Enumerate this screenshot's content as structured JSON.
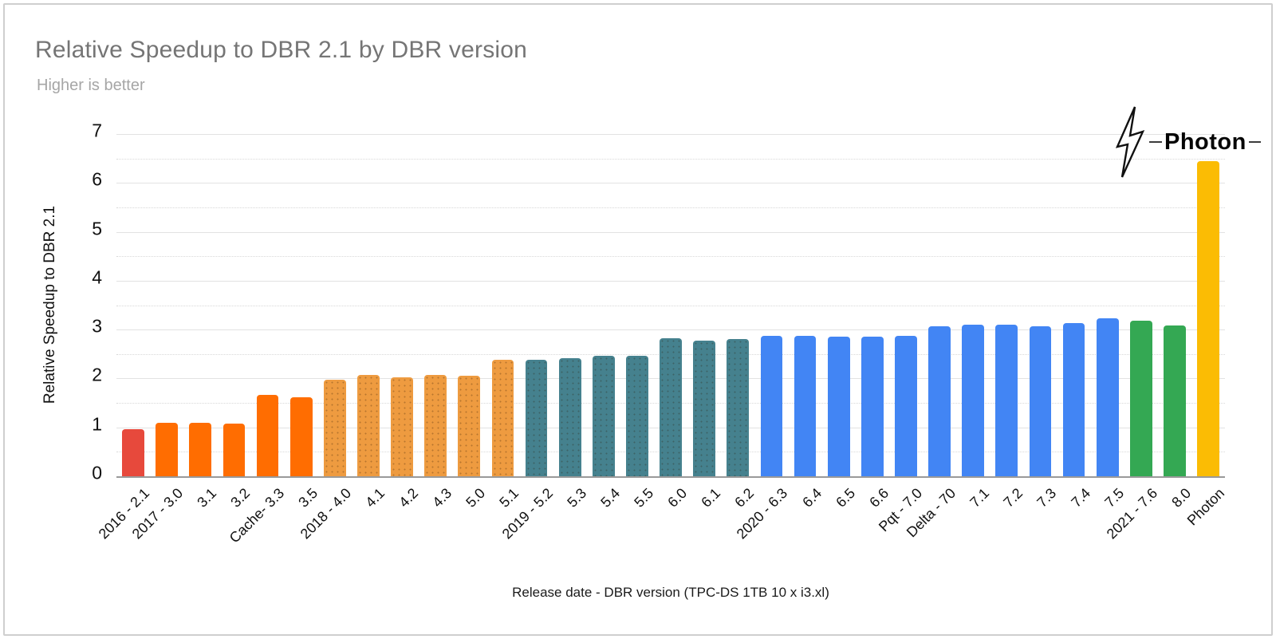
{
  "header": {
    "title": "Relative Speedup to DBR 2.1 by DBR version",
    "subtitle": "Higher is better"
  },
  "chart_data": {
    "type": "bar",
    "title": "Relative Speedup to DBR 2.1 by DBR version",
    "subtitle": "Higher is better",
    "xlabel": "Release date - DBR version (TPC-DS 1TB 10 x i3.xl)",
    "ylabel": "Relative Speedup to DBR 2.1",
    "ylim": [
      0,
      7
    ],
    "yticks": [
      0,
      1,
      2,
      3,
      4,
      5,
      6,
      7
    ],
    "grid": "major solid, minor dotted at 0.5 steps",
    "legend": "none",
    "annotation": {
      "label": "Photon",
      "icon": "lightning-bolt-icon",
      "target_category": "Photon"
    },
    "palette": {
      "red": "#E7493C",
      "orange": "#FF6D01",
      "tan": "#EE9B40",
      "teal": "#45818E",
      "blue": "#4285F4",
      "green": "#34A853",
      "yellow": "#FBBC04",
      "gridline": "#e2e2e2",
      "axis_line": "#9a9a9a"
    },
    "bars": [
      {
        "label": "2016 - 2.1",
        "value": 0.97,
        "color": "#E7493C",
        "dotted": false
      },
      {
        "label": "2017 - 3.0",
        "value": 1.1,
        "color": "#FF6D01",
        "dotted": false
      },
      {
        "label": "3.1",
        "value": 1.09,
        "color": "#FF6D01",
        "dotted": false
      },
      {
        "label": "3.2",
        "value": 1.07,
        "color": "#FF6D01",
        "dotted": false
      },
      {
        "label": "Cache- 3.3",
        "value": 1.66,
        "color": "#FF6D01",
        "dotted": false
      },
      {
        "label": "3.5",
        "value": 1.62,
        "color": "#FF6D01",
        "dotted": false
      },
      {
        "label": "2018 - 4.0",
        "value": 1.98,
        "color": "#EE9B40",
        "dotted": true
      },
      {
        "label": "4.1",
        "value": 2.07,
        "color": "#EE9B40",
        "dotted": true
      },
      {
        "label": "4.2",
        "value": 2.03,
        "color": "#EE9B40",
        "dotted": true
      },
      {
        "label": "4.3",
        "value": 2.07,
        "color": "#EE9B40",
        "dotted": true
      },
      {
        "label": "5.0",
        "value": 2.06,
        "color": "#EE9B40",
        "dotted": true
      },
      {
        "label": "5.1",
        "value": 2.38,
        "color": "#EE9B40",
        "dotted": true
      },
      {
        "label": "2019 - 5.2",
        "value": 2.38,
        "color": "#45818E",
        "dotted": true
      },
      {
        "label": "5.3",
        "value": 2.41,
        "color": "#45818E",
        "dotted": true
      },
      {
        "label": "5.4",
        "value": 2.47,
        "color": "#45818E",
        "dotted": true
      },
      {
        "label": "5.5",
        "value": 2.46,
        "color": "#45818E",
        "dotted": true
      },
      {
        "label": "6.0",
        "value": 2.82,
        "color": "#45818E",
        "dotted": true
      },
      {
        "label": "6.1",
        "value": 2.78,
        "color": "#45818E",
        "dotted": true
      },
      {
        "label": "6.2",
        "value": 2.81,
        "color": "#45818E",
        "dotted": true
      },
      {
        "label": "2020 - 6.3",
        "value": 2.87,
        "color": "#4285F4",
        "dotted": false
      },
      {
        "label": "6.4",
        "value": 2.87,
        "color": "#4285F4",
        "dotted": false
      },
      {
        "label": "6.5",
        "value": 2.86,
        "color": "#4285F4",
        "dotted": false
      },
      {
        "label": "6.6",
        "value": 2.86,
        "color": "#4285F4",
        "dotted": false
      },
      {
        "label": "Pqt - 7.0",
        "value": 2.87,
        "color": "#4285F4",
        "dotted": false
      },
      {
        "label": "Delta - 70",
        "value": 3.06,
        "color": "#4285F4",
        "dotted": false
      },
      {
        "label": "7.1",
        "value": 3.1,
        "color": "#4285F4",
        "dotted": false
      },
      {
        "label": "7.2",
        "value": 3.1,
        "color": "#4285F4",
        "dotted": false
      },
      {
        "label": "7.3",
        "value": 3.06,
        "color": "#4285F4",
        "dotted": false
      },
      {
        "label": "7.4",
        "value": 3.14,
        "color": "#4285F4",
        "dotted": false
      },
      {
        "label": "7.5",
        "value": 3.23,
        "color": "#4285F4",
        "dotted": false
      },
      {
        "label": "2021 - 7.6",
        "value": 3.18,
        "color": "#34A853",
        "dotted": false
      },
      {
        "label": "8.0",
        "value": 3.08,
        "color": "#34A853",
        "dotted": false
      },
      {
        "label": "Photon",
        "value": 6.45,
        "color": "#FBBC04",
        "dotted": false
      }
    ]
  }
}
